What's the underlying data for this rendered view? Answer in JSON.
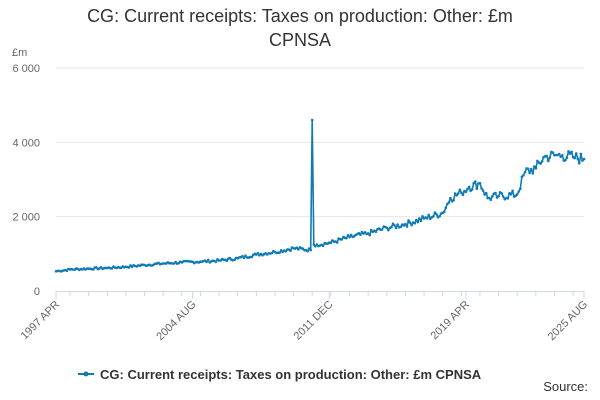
{
  "title_line1": "CG: Current receipts: Taxes on production: Other: £m",
  "title_line2": "CPNSA",
  "source_label": "Source:",
  "colors": {
    "series": "#0f7bb5",
    "grid": "#e6e6e6",
    "axis": "#ccd6eb",
    "text": "#666666"
  },
  "chart_data": {
    "type": "line",
    "title": "CG: Current receipts: Taxes on production: Other: £m CPNSA",
    "ylabel": "£m",
    "xlabel": "",
    "ylim": [
      0,
      6000
    ],
    "yticks": [
      0,
      2000,
      4000,
      6000
    ],
    "ytick_labels": [
      "0",
      "2 000",
      "4 000",
      "6 000"
    ],
    "xlim": [
      "1997-04",
      "2025-08"
    ],
    "xticks": [
      "1997-04",
      "2004-08",
      "2011-12",
      "2019-04",
      "2025-08"
    ],
    "xtick_labels": [
      "1997 APR",
      "2004 AUG",
      "2011 DEC",
      "2019 APR",
      "2025 AUG"
    ],
    "grid": true,
    "legend_position": "bottom",
    "series": [
      {
        "name": "CG: Current receipts: Taxes on production: Other: £m CPNSA",
        "x": [
          "1997-04",
          "1998-01",
          "1999-01",
          "2000-01",
          "2001-01",
          "2002-01",
          "2003-01",
          "2004-01",
          "2005-01",
          "2006-01",
          "2007-01",
          "2008-01",
          "2009-01",
          "2010-01",
          "2010-12",
          "2011-01",
          "2011-02",
          "2011-04",
          "2012-01",
          "2013-01",
          "2014-01",
          "2015-01",
          "2016-01",
          "2017-01",
          "2018-01",
          "2018-06",
          "2019-01",
          "2019-06",
          "2020-01",
          "2020-06",
          "2021-01",
          "2022-01",
          "2022-06",
          "2023-01",
          "2023-06",
          "2024-01",
          "2024-06",
          "2025-01",
          "2025-08"
        ],
        "values": [
          530,
          580,
          600,
          620,
          650,
          700,
          740,
          770,
          790,
          820,
          880,
          980,
          1050,
          1150,
          1100,
          4600,
          1250,
          1250,
          1300,
          1450,
          1550,
          1700,
          1800,
          1950,
          2100,
          2500,
          2650,
          2800,
          2900,
          2500,
          2550,
          2600,
          3200,
          3300,
          3600,
          3650,
          3650,
          3600,
          3550
        ]
      }
    ]
  }
}
